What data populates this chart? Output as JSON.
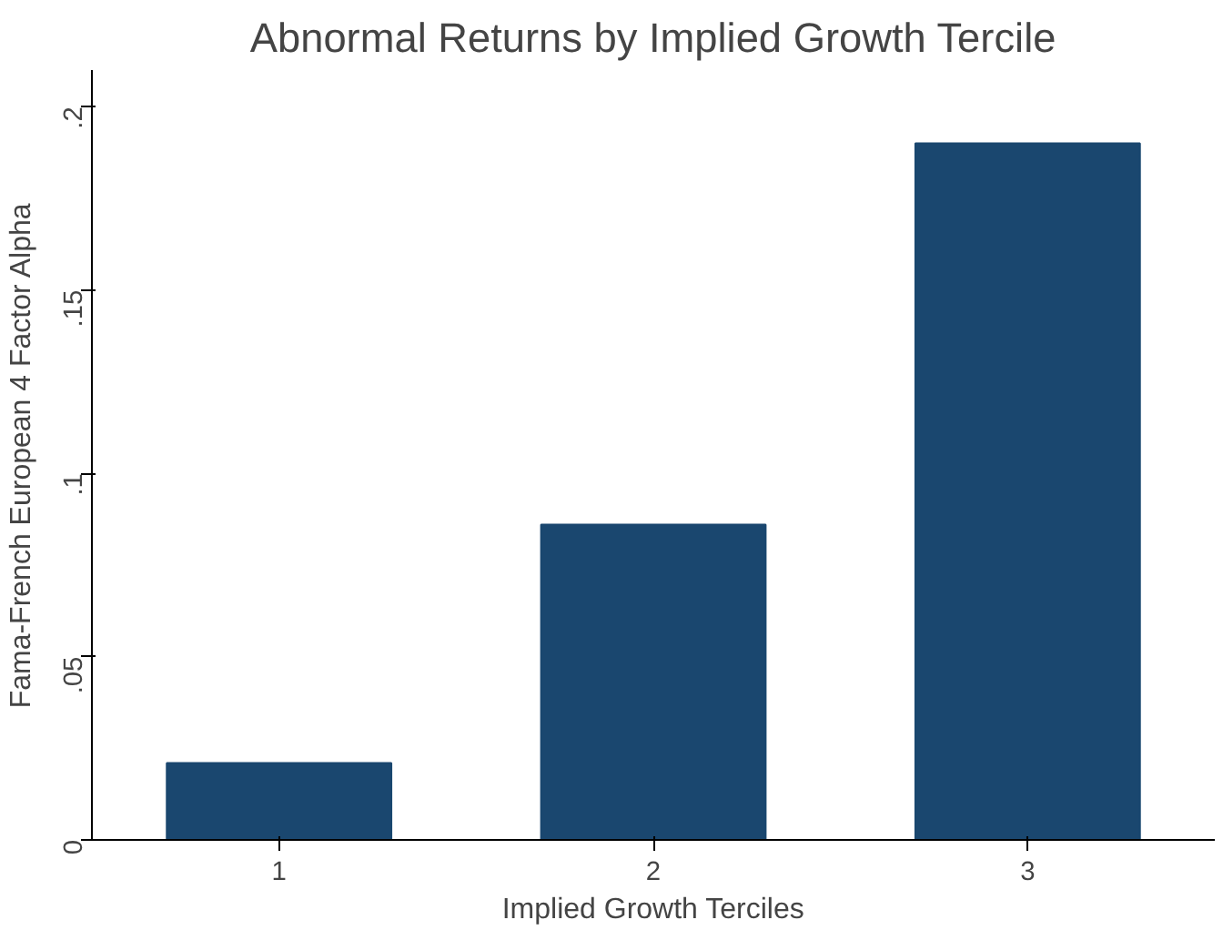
{
  "chart_data": {
    "type": "bar",
    "title": "Abnormal Returns by Implied Growth Tercile",
    "xlabel": "Implied Growth Terciles",
    "ylabel": "Fama-French European 4 Factor Alpha",
    "x": [
      1,
      2,
      3
    ],
    "values": [
      0.021,
      0.086,
      0.19
    ],
    "color": "#1a476f",
    "xlim": [
      0.5,
      3.5
    ],
    "xticks": [
      1,
      2,
      3
    ],
    "ylim": [
      0,
      0.21
    ],
    "yticks": [
      0,
      {
        "value": 0.05,
        "label": ".05"
      },
      {
        "value": 0.1,
        "label": ".1"
      },
      {
        "value": 0.15,
        "label": ".15"
      },
      {
        "value": 0.2,
        "label": ".2"
      }
    ],
    "grid": false
  }
}
